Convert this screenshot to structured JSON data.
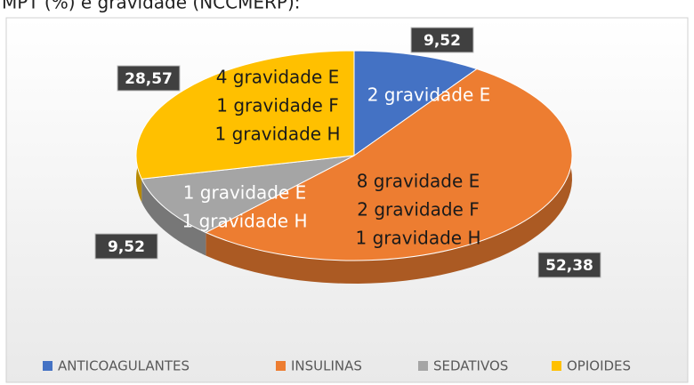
{
  "chart_data": {
    "type": "pie",
    "title": "MPT (%) e gravidade (NCCMERP):",
    "categories": [
      "ANTICOAGULANTES",
      "INSULINAS",
      "SEDATIVOS",
      "OPIOIDES"
    ],
    "values": [
      9.52,
      52.38,
      9.52,
      28.57
    ],
    "value_labels": [
      "9,52",
      "52,38",
      "9,52",
      "28,57"
    ],
    "colors": [
      "#4472c4",
      "#ed7d31",
      "#a5a5a5",
      "#ffc000"
    ],
    "annotations": [
      [
        "2 gravidade E"
      ],
      [
        "8 gravidade E",
        "2 gravidade F",
        "1 gravidade H"
      ],
      [
        "1 gravidade E",
        "1 gravidade H"
      ],
      [
        "4 gravidade E",
        "1 gravidade F",
        "1 gravidade H"
      ]
    ],
    "legend": "bottom",
    "three_d": true
  }
}
